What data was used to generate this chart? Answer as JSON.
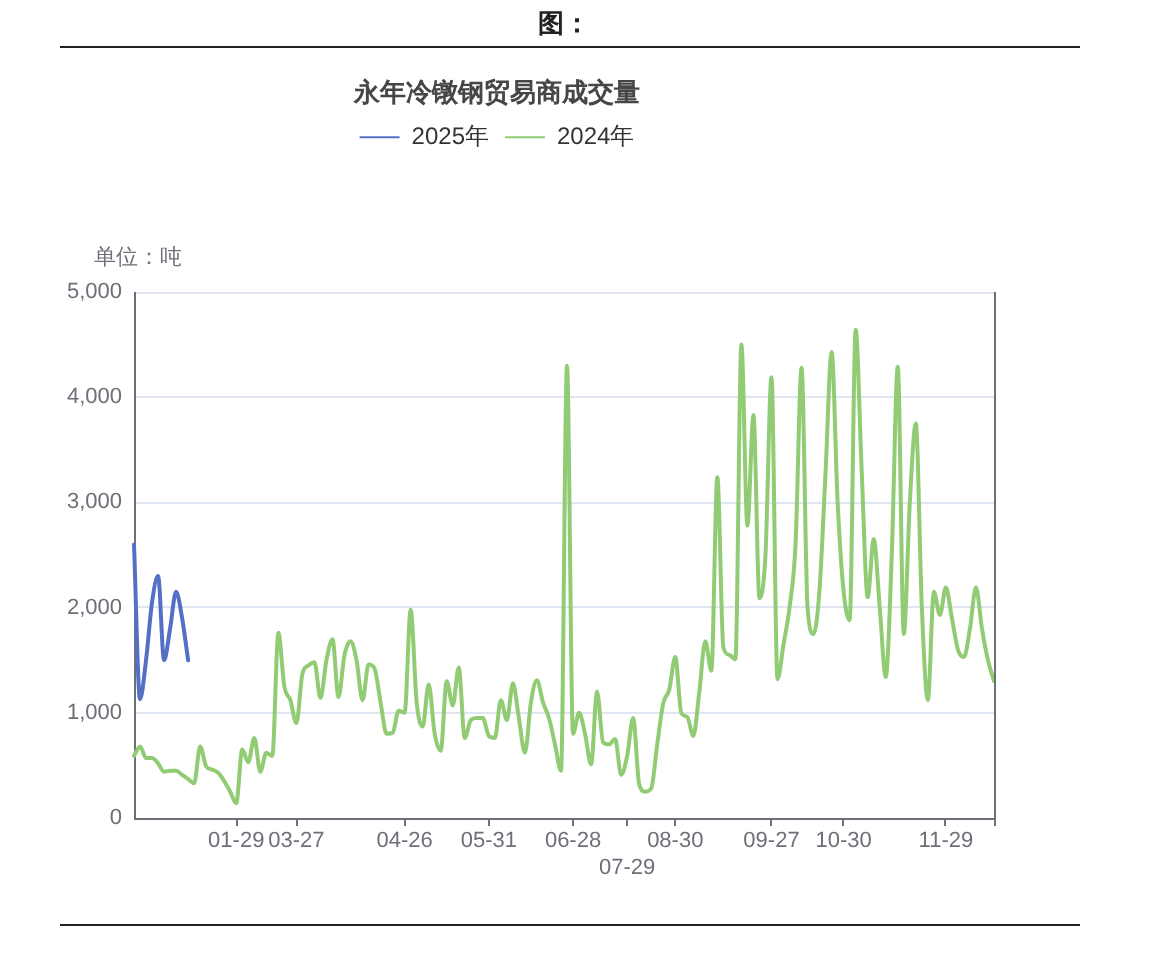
{
  "chart_data": {
    "type": "line",
    "title": "永年冷镦钢贸易商成交量",
    "ylabel": "单位：吨",
    "annotations": [
      "图："
    ],
    "categories": [
      null,
      null,
      null,
      null,
      null,
      null,
      null,
      null,
      null,
      null,
      null,
      null,
      null,
      null,
      null,
      null,
      null,
      "01-29",
      null,
      null,
      null,
      null,
      null,
      null,
      null,
      null,
      null,
      "03-27",
      null,
      null,
      null,
      null,
      null,
      null,
      null,
      null,
      null,
      null,
      null,
      null,
      null,
      null,
      null,
      null,
      null,
      "04-26",
      null,
      null,
      null,
      null,
      null,
      null,
      null,
      null,
      null,
      null,
      null,
      null,
      null,
      "05-31",
      null,
      null,
      null,
      null,
      null,
      null,
      null,
      null,
      null,
      null,
      null,
      null,
      null,
      "06-28",
      null,
      null,
      null,
      null,
      null,
      null,
      null,
      null,
      "07-29",
      null,
      null,
      null,
      null,
      null,
      null,
      null,
      "08-30",
      null,
      null,
      null,
      null,
      null,
      null,
      null,
      null,
      null,
      null,
      null,
      null,
      null,
      null,
      null,
      "09-27",
      null,
      null,
      null,
      null,
      null,
      null,
      null,
      null,
      null,
      null,
      null,
      "10-30",
      null,
      null,
      null,
      null,
      null,
      null,
      null,
      null,
      null,
      null,
      null,
      null,
      null,
      null,
      null,
      null,
      "11-29",
      null,
      null,
      null,
      null,
      null,
      null,
      null,
      null
    ],
    "series": [
      {
        "name": "2025年",
        "color": "#5470c6",
        "values": [
          2600,
          1130,
          1500,
          2050,
          2300,
          1500,
          1800,
          2150,
          1900,
          1500,
          null,
          null,
          null,
          null,
          null,
          null,
          null,
          null,
          null,
          null,
          null,
          null,
          null,
          null,
          null,
          null,
          null,
          null,
          null,
          null,
          null,
          null,
          null,
          null,
          null,
          null,
          null,
          null,
          null,
          null,
          null,
          null,
          null,
          null,
          null,
          null,
          null,
          null,
          null,
          null,
          null,
          null,
          null,
          null,
          null,
          null,
          null,
          null,
          null,
          null,
          null,
          null,
          null,
          null,
          null,
          null,
          null,
          null,
          null,
          null,
          null,
          null,
          null,
          null,
          null,
          null,
          null,
          null,
          null,
          null,
          null,
          null,
          null,
          null,
          null,
          null,
          null,
          null,
          null,
          null,
          null,
          null,
          null,
          null,
          null,
          null,
          null,
          null,
          null,
          null,
          null,
          null,
          null,
          null,
          null,
          null,
          null,
          null,
          null,
          null,
          null,
          null,
          null,
          null,
          null,
          null,
          null,
          null,
          null,
          null,
          null,
          null,
          null,
          null,
          null,
          null,
          null,
          null,
          null,
          null,
          null,
          null,
          null,
          null,
          null,
          null,
          null,
          null,
          null,
          null,
          null,
          null,
          null,
          null
        ]
      },
      {
        "name": "2024年",
        "color": "#91cc75",
        "values": [
          590,
          680,
          570,
          570,
          520,
          440,
          450,
          450,
          410,
          370,
          330,
          680,
          490,
          460,
          430,
          350,
          250,
          140,
          650,
          530,
          760,
          440,
          620,
          590,
          1760,
          1250,
          1120,
          900,
          1370,
          1450,
          1480,
          1140,
          1500,
          1700,
          1150,
          1550,
          1680,
          1500,
          1120,
          1460,
          1420,
          1100,
          800,
          810,
          1020,
          1000,
          1980,
          1100,
          870,
          1270,
          800,
          640,
          1300,
          1070,
          1430,
          760,
          930,
          950,
          950,
          780,
          760,
          1120,
          930,
          1280,
          950,
          620,
          1100,
          1310,
          1100,
          950,
          700,
          450,
          4300,
          800,
          1000,
          800,
          510,
          1200,
          720,
          700,
          750,
          410,
          590,
          950,
          320,
          250,
          280,
          700,
          1090,
          1220,
          1530,
          1000,
          960,
          780,
          1200,
          1680,
          1400,
          3240,
          1620,
          1550,
          1510,
          4500,
          2780,
          3830,
          2090,
          2500,
          4190,
          1320,
          1650,
          2000,
          2600,
          4280,
          2000,
          1750,
          2180,
          3300,
          4430,
          3000,
          2150,
          1880,
          4640,
          3300,
          2100,
          2650,
          2000,
          1340,
          2500,
          4290,
          1750,
          3000,
          3750,
          2000,
          1120,
          2150,
          1930,
          2190,
          1900,
          1600,
          1530,
          1800,
          2190,
          1800,
          1500,
          1300
        ]
      }
    ],
    "ylim": [
      0,
      5000
    ],
    "yticks": [
      0,
      {
        "value": 1000,
        "label": "1,000"
      },
      {
        "value": 2000,
        "label": "2,000"
      },
      {
        "value": 3000,
        "label": "3,000"
      },
      {
        "value": 4000,
        "label": "4,000"
      },
      {
        "value": 5000,
        "label": "5,000"
      }
    ],
    "grid": "y",
    "legend": "top"
  }
}
